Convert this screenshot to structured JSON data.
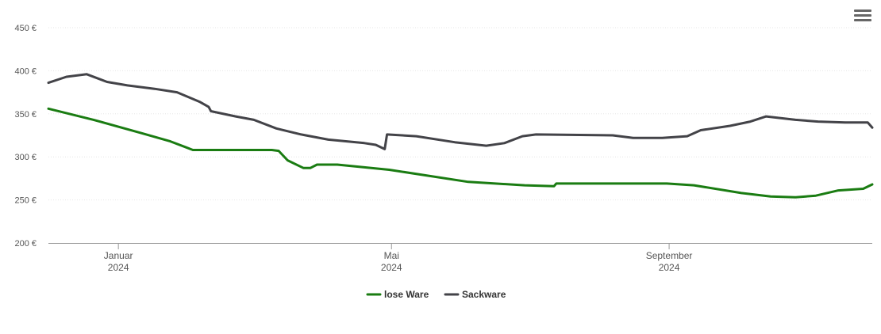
{
  "menu": {
    "icon": "hamburger-menu-icon"
  },
  "chart_data": {
    "type": "line",
    "title": "",
    "xlabel": "",
    "ylabel": "",
    "ylim": [
      200,
      450
    ],
    "yticks": [
      200,
      250,
      300,
      350,
      400,
      450
    ],
    "ytick_labels": [
      "200 €",
      "250 €",
      "300 €",
      "350 €",
      "400 €",
      "450 €"
    ],
    "xlim": [
      "2023-12-01",
      "2024-11-30"
    ],
    "xticks": [
      {
        "date": "2024-01-01",
        "label_line1": "Januar",
        "label_line2": "2024"
      },
      {
        "date": "2024-05-01",
        "label_line1": "Mai",
        "label_line2": "2024"
      },
      {
        "date": "2024-09-01",
        "label_line1": "September",
        "label_line2": "2024"
      }
    ],
    "grid": true,
    "legend_position": "bottom-center",
    "series": [
      {
        "name": "lose Ware",
        "color": "#1a7c12",
        "points": [
          [
            "2023-12-01",
            356
          ],
          [
            "2023-12-21",
            343
          ],
          [
            "2024-01-12",
            327
          ],
          [
            "2024-01-24",
            318
          ],
          [
            "2024-01-31",
            311
          ],
          [
            "2024-02-03",
            308
          ],
          [
            "2024-03-09",
            308
          ],
          [
            "2024-03-12",
            307
          ],
          [
            "2024-03-16",
            296
          ],
          [
            "2024-03-23",
            287
          ],
          [
            "2024-03-26",
            287
          ],
          [
            "2024-03-29",
            291
          ],
          [
            "2024-04-07",
            291
          ],
          [
            "2024-04-30",
            285
          ],
          [
            "2024-06-04",
            271
          ],
          [
            "2024-06-29",
            267
          ],
          [
            "2024-07-12",
            266
          ],
          [
            "2024-07-13",
            269
          ],
          [
            "2024-08-12",
            269
          ],
          [
            "2024-08-31",
            269
          ],
          [
            "2024-09-12",
            267
          ],
          [
            "2024-10-03",
            258
          ],
          [
            "2024-10-16",
            254
          ],
          [
            "2024-10-27",
            253
          ],
          [
            "2024-11-05",
            255
          ],
          [
            "2024-11-15",
            261
          ],
          [
            "2024-11-26",
            263
          ],
          [
            "2024-11-30",
            268
          ]
        ]
      },
      {
        "name": "Sackware",
        "color": "#434348",
        "points": [
          [
            "2023-12-01",
            386
          ],
          [
            "2023-12-09",
            393
          ],
          [
            "2023-12-18",
            396
          ],
          [
            "2023-12-27",
            387
          ],
          [
            "2024-01-05",
            383
          ],
          [
            "2024-01-17",
            379
          ],
          [
            "2024-01-27",
            375
          ],
          [
            "2024-02-06",
            364
          ],
          [
            "2024-02-10",
            358
          ],
          [
            "2024-02-11",
            353
          ],
          [
            "2024-02-22",
            347
          ],
          [
            "2024-03-01",
            343
          ],
          [
            "2024-03-11",
            333
          ],
          [
            "2024-03-22",
            326
          ],
          [
            "2024-04-03",
            320
          ],
          [
            "2024-04-19",
            316
          ],
          [
            "2024-04-24",
            314
          ],
          [
            "2024-04-28",
            309
          ],
          [
            "2024-04-29",
            326
          ],
          [
            "2024-05-12",
            324
          ],
          [
            "2024-05-29",
            317
          ],
          [
            "2024-06-12",
            313
          ],
          [
            "2024-06-20",
            316
          ],
          [
            "2024-06-28",
            324
          ],
          [
            "2024-07-04",
            326
          ],
          [
            "2024-08-07",
            325
          ],
          [
            "2024-08-16",
            322
          ],
          [
            "2024-08-29",
            322
          ],
          [
            "2024-09-09",
            324
          ],
          [
            "2024-09-15",
            331
          ],
          [
            "2024-09-28",
            336
          ],
          [
            "2024-10-07",
            341
          ],
          [
            "2024-10-14",
            347
          ],
          [
            "2024-10-27",
            343
          ],
          [
            "2024-11-06",
            341
          ],
          [
            "2024-11-18",
            340
          ],
          [
            "2024-11-28",
            340
          ],
          [
            "2024-11-30",
            334
          ]
        ]
      }
    ]
  }
}
